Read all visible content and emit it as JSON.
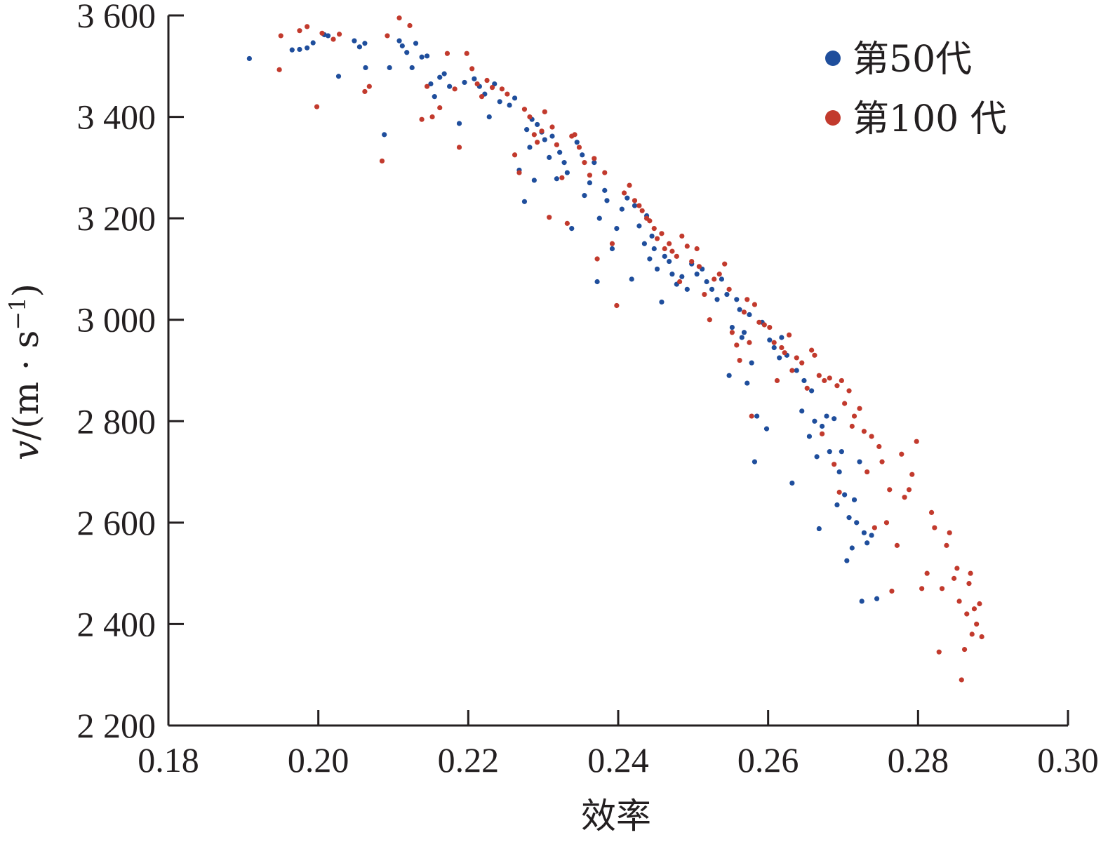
{
  "chart_data": {
    "type": "scatter",
    "xlabel": "效率",
    "ylabel_main": "v",
    "ylabel_unit": "/(m · s",
    "ylabel_sup": "−1",
    "ylabel_close": ")",
    "xlim": [
      0.18,
      0.3
    ],
    "ylim": [
      2200,
      3600
    ],
    "xticks": [
      0.18,
      0.2,
      0.22,
      0.24,
      0.26,
      0.28,
      0.3
    ],
    "xtick_labels": [
      "0.18",
      "0.20",
      "0.22",
      "0.24",
      "0.26",
      "0.28",
      "0.30"
    ],
    "yticks": [
      2200,
      2400,
      2600,
      2800,
      3000,
      3200,
      3400,
      3600
    ],
    "ytick_labels": [
      "2 200",
      "2 400",
      "2 600",
      "2 800",
      "3 000",
      "3 200",
      "3 400",
      "3 600"
    ],
    "grid": false,
    "legend_position": "top-right",
    "series": [
      {
        "name": "第50代",
        "color": "#1f4e9c",
        "points": [
          [
            0.1908,
            3515
          ],
          [
            0.1965,
            3532
          ],
          [
            0.1975,
            3533
          ],
          [
            0.1985,
            3536
          ],
          [
            0.1993,
            3546
          ],
          [
            0.2008,
            3562
          ],
          [
            0.2013,
            3560
          ],
          [
            0.2027,
            3480
          ],
          [
            0.2048,
            3550
          ],
          [
            0.2055,
            3538
          ],
          [
            0.2062,
            3545
          ],
          [
            0.2063,
            3497
          ],
          [
            0.2088,
            3365
          ],
          [
            0.2095,
            3497
          ],
          [
            0.2108,
            3550
          ],
          [
            0.2112,
            3540
          ],
          [
            0.2118,
            3527
          ],
          [
            0.2125,
            3497
          ],
          [
            0.213,
            3545
          ],
          [
            0.2138,
            3518
          ],
          [
            0.2145,
            3520
          ],
          [
            0.215,
            3465
          ],
          [
            0.2155,
            3440
          ],
          [
            0.2162,
            3478
          ],
          [
            0.2168,
            3485
          ],
          [
            0.2175,
            3460
          ],
          [
            0.2188,
            3387
          ],
          [
            0.2195,
            3468
          ],
          [
            0.2208,
            3475
          ],
          [
            0.2215,
            3460
          ],
          [
            0.2222,
            3445
          ],
          [
            0.2228,
            3400
          ],
          [
            0.2235,
            3465
          ],
          [
            0.2242,
            3430
          ],
          [
            0.2255,
            3423
          ],
          [
            0.2262,
            3437
          ],
          [
            0.2268,
            3295
          ],
          [
            0.2275,
            3233
          ],
          [
            0.2278,
            3375
          ],
          [
            0.2282,
            3340
          ],
          [
            0.2285,
            3395
          ],
          [
            0.2288,
            3275
          ],
          [
            0.2292,
            3385
          ],
          [
            0.2298,
            3370
          ],
          [
            0.2302,
            3355
          ],
          [
            0.2308,
            3320
          ],
          [
            0.2312,
            3362
          ],
          [
            0.2318,
            3278
          ],
          [
            0.2322,
            3330
          ],
          [
            0.2328,
            3310
          ],
          [
            0.2332,
            3290
          ],
          [
            0.2338,
            3180
          ],
          [
            0.2345,
            3350
          ],
          [
            0.2352,
            3325
          ],
          [
            0.2355,
            3245
          ],
          [
            0.2362,
            3270
          ],
          [
            0.2368,
            3310
          ],
          [
            0.2372,
            3075
          ],
          [
            0.2375,
            3200
          ],
          [
            0.2382,
            3255
          ],
          [
            0.2385,
            3235
          ],
          [
            0.2392,
            3140
          ],
          [
            0.2398,
            3180
          ],
          [
            0.2405,
            3218
          ],
          [
            0.2412,
            3240
          ],
          [
            0.2418,
            3080
          ],
          [
            0.2422,
            3225
          ],
          [
            0.2428,
            3185
          ],
          [
            0.2435,
            3150
          ],
          [
            0.2438,
            3205
          ],
          [
            0.2442,
            3120
          ],
          [
            0.2445,
            3165
          ],
          [
            0.2448,
            3140
          ],
          [
            0.2452,
            3100
          ],
          [
            0.2458,
            3035
          ],
          [
            0.2462,
            3125
          ],
          [
            0.2468,
            3115
          ],
          [
            0.2472,
            3090
          ],
          [
            0.2478,
            3070
          ],
          [
            0.2485,
            3085
          ],
          [
            0.2492,
            3060
          ],
          [
            0.2498,
            3110
          ],
          [
            0.2505,
            3090
          ],
          [
            0.2512,
            3100
          ],
          [
            0.2518,
            3075
          ],
          [
            0.2525,
            3060
          ],
          [
            0.2532,
            3040
          ],
          [
            0.2538,
            3080
          ],
          [
            0.2545,
            3050
          ],
          [
            0.2548,
            2890
          ],
          [
            0.2552,
            2985
          ],
          [
            0.2558,
            3040
          ],
          [
            0.2562,
            3020
          ],
          [
            0.2565,
            2965
          ],
          [
            0.2568,
            2975
          ],
          [
            0.2572,
            2875
          ],
          [
            0.2575,
            3010
          ],
          [
            0.2578,
            2915
          ],
          [
            0.2582,
            2720
          ],
          [
            0.2585,
            2810
          ],
          [
            0.2592,
            2995
          ],
          [
            0.2598,
            2785
          ],
          [
            0.2602,
            2960
          ],
          [
            0.2608,
            2945
          ],
          [
            0.2615,
            2925
          ],
          [
            0.2618,
            2965
          ],
          [
            0.2625,
            2930
          ],
          [
            0.2632,
            2678
          ],
          [
            0.2638,
            2900
          ],
          [
            0.2645,
            2820
          ],
          [
            0.2648,
            2880
          ],
          [
            0.2655,
            2770
          ],
          [
            0.2658,
            2860
          ],
          [
            0.2662,
            2800
          ],
          [
            0.2665,
            2730
          ],
          [
            0.2668,
            2588
          ],
          [
            0.2672,
            2790
          ],
          [
            0.2678,
            2810
          ],
          [
            0.2682,
            2740
          ],
          [
            0.2688,
            2805
          ],
          [
            0.2692,
            2635
          ],
          [
            0.2695,
            2700
          ],
          [
            0.2698,
            2740
          ],
          [
            0.2702,
            2655
          ],
          [
            0.2705,
            2525
          ],
          [
            0.2708,
            2610
          ],
          [
            0.2712,
            2550
          ],
          [
            0.2715,
            2645
          ],
          [
            0.2718,
            2600
          ],
          [
            0.2722,
            2720
          ],
          [
            0.2725,
            2445
          ],
          [
            0.2728,
            2580
          ],
          [
            0.2732,
            2560
          ],
          [
            0.2738,
            2575
          ],
          [
            0.2745,
            2450
          ]
        ]
      },
      {
        "name": "第100 代",
        "color": "#c23a2d",
        "points": [
          [
            0.1948,
            3493
          ],
          [
            0.195,
            3560
          ],
          [
            0.1975,
            3570
          ],
          [
            0.1985,
            3578
          ],
          [
            0.1998,
            3420
          ],
          [
            0.2005,
            3565
          ],
          [
            0.202,
            3553
          ],
          [
            0.2028,
            3563
          ],
          [
            0.2062,
            3450
          ],
          [
            0.2068,
            3460
          ],
          [
            0.2085,
            3313
          ],
          [
            0.2092,
            3560
          ],
          [
            0.2108,
            3595
          ],
          [
            0.2122,
            3580
          ],
          [
            0.2138,
            3395
          ],
          [
            0.2145,
            3460
          ],
          [
            0.2152,
            3400
          ],
          [
            0.2162,
            3418
          ],
          [
            0.2172,
            3525
          ],
          [
            0.2182,
            3455
          ],
          [
            0.2188,
            3340
          ],
          [
            0.2198,
            3525
          ],
          [
            0.2205,
            3495
          ],
          [
            0.2212,
            3465
          ],
          [
            0.2218,
            3440
          ],
          [
            0.2225,
            3472
          ],
          [
            0.2232,
            3458
          ],
          [
            0.2245,
            3455
          ],
          [
            0.2252,
            3445
          ],
          [
            0.2262,
            3325
          ],
          [
            0.2268,
            3290
          ],
          [
            0.2275,
            3415
          ],
          [
            0.2282,
            3400
          ],
          [
            0.2288,
            3365
          ],
          [
            0.2292,
            3350
          ],
          [
            0.2298,
            3372
          ],
          [
            0.2302,
            3410
          ],
          [
            0.2308,
            3202
          ],
          [
            0.2312,
            3380
          ],
          [
            0.2318,
            3345
          ],
          [
            0.2325,
            3280
          ],
          [
            0.2332,
            3190
          ],
          [
            0.2338,
            3362
          ],
          [
            0.2342,
            3365
          ],
          [
            0.2348,
            3340
          ],
          [
            0.2355,
            3310
          ],
          [
            0.2362,
            3285
          ],
          [
            0.2368,
            3318
          ],
          [
            0.2372,
            3120
          ],
          [
            0.2382,
            3290
          ],
          [
            0.2392,
            3150
          ],
          [
            0.2398,
            3028
          ],
          [
            0.2408,
            3250
          ],
          [
            0.2415,
            3265
          ],
          [
            0.2422,
            3235
          ],
          [
            0.2428,
            3225
          ],
          [
            0.2432,
            3215
          ],
          [
            0.2438,
            3200
          ],
          [
            0.2442,
            3195
          ],
          [
            0.2448,
            3180
          ],
          [
            0.2452,
            3160
          ],
          [
            0.2458,
            3170
          ],
          [
            0.2462,
            3140
          ],
          [
            0.2468,
            3150
          ],
          [
            0.2472,
            3135
          ],
          [
            0.2478,
            3125
          ],
          [
            0.2482,
            3075
          ],
          [
            0.2485,
            3165
          ],
          [
            0.2492,
            3145
          ],
          [
            0.2498,
            3115
          ],
          [
            0.2505,
            3140
          ],
          [
            0.2508,
            3105
          ],
          [
            0.2515,
            3050
          ],
          [
            0.2522,
            3000
          ],
          [
            0.2528,
            3080
          ],
          [
            0.2535,
            3090
          ],
          [
            0.2542,
            3110
          ],
          [
            0.2548,
            3060
          ],
          [
            0.2552,
            2975
          ],
          [
            0.2558,
            2950
          ],
          [
            0.2562,
            2920
          ],
          [
            0.2568,
            3015
          ],
          [
            0.2572,
            3040
          ],
          [
            0.2575,
            2955
          ],
          [
            0.2578,
            2810
          ],
          [
            0.2582,
            3030
          ],
          [
            0.2588,
            2995
          ],
          [
            0.2595,
            2990
          ],
          [
            0.2602,
            2985
          ],
          [
            0.2608,
            2955
          ],
          [
            0.2612,
            2880
          ],
          [
            0.2618,
            2945
          ],
          [
            0.2622,
            2935
          ],
          [
            0.2628,
            2970
          ],
          [
            0.2632,
            2900
          ],
          [
            0.2638,
            2925
          ],
          [
            0.2645,
            2915
          ],
          [
            0.2652,
            2865
          ],
          [
            0.2658,
            2940
          ],
          [
            0.2662,
            2930
          ],
          [
            0.2668,
            2890
          ],
          [
            0.2672,
            2775
          ],
          [
            0.2675,
            2880
          ],
          [
            0.2682,
            2885
          ],
          [
            0.2688,
            2715
          ],
          [
            0.2692,
            2870
          ],
          [
            0.2695,
            2660
          ],
          [
            0.2698,
            2880
          ],
          [
            0.2702,
            2835
          ],
          [
            0.2708,
            2860
          ],
          [
            0.2712,
            2790
          ],
          [
            0.2715,
            2810
          ],
          [
            0.2722,
            2825
          ],
          [
            0.2728,
            2780
          ],
          [
            0.2732,
            2700
          ],
          [
            0.2738,
            2770
          ],
          [
            0.2742,
            2590
          ],
          [
            0.2748,
            2750
          ],
          [
            0.2752,
            2720
          ],
          [
            0.2758,
            2600
          ],
          [
            0.2762,
            2665
          ],
          [
            0.2765,
            2465
          ],
          [
            0.2772,
            2555
          ],
          [
            0.2778,
            2735
          ],
          [
            0.2782,
            2650
          ],
          [
            0.2788,
            2665
          ],
          [
            0.2792,
            2695
          ],
          [
            0.2798,
            2760
          ],
          [
            0.2805,
            2470
          ],
          [
            0.2812,
            2500
          ],
          [
            0.2818,
            2620
          ],
          [
            0.2822,
            2590
          ],
          [
            0.2828,
            2345
          ],
          [
            0.2832,
            2470
          ],
          [
            0.2838,
            2555
          ],
          [
            0.2842,
            2580
          ],
          [
            0.2848,
            2490
          ],
          [
            0.2852,
            2510
          ],
          [
            0.2855,
            2445
          ],
          [
            0.2858,
            2290
          ],
          [
            0.2862,
            2350
          ],
          [
            0.2865,
            2420
          ],
          [
            0.2868,
            2480
          ],
          [
            0.287,
            2500
          ],
          [
            0.2872,
            2380
          ],
          [
            0.2875,
            2430
          ],
          [
            0.2878,
            2400
          ],
          [
            0.2882,
            2440
          ],
          [
            0.2885,
            2375
          ]
        ]
      }
    ]
  }
}
